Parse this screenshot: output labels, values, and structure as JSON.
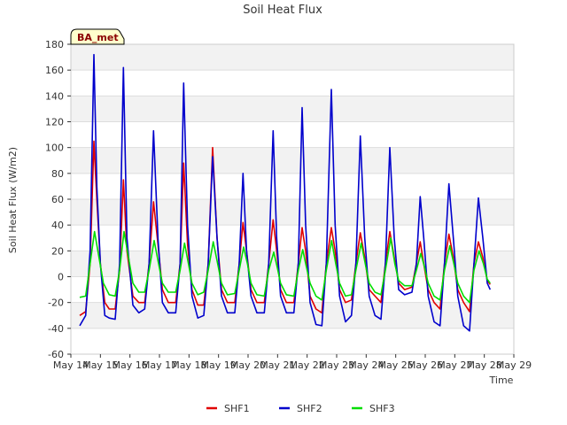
{
  "chart_data": {
    "type": "line",
    "title": "Soil Heat Flux",
    "xlabel": "Time",
    "ylabel": "Soil Heat Flux (W/m2)",
    "badge": "BA_met",
    "ylim": [
      -60,
      180
    ],
    "yticks": [
      -60,
      -40,
      -20,
      0,
      20,
      40,
      60,
      80,
      100,
      120,
      140,
      160,
      180
    ],
    "xlim": [
      14,
      29
    ],
    "xticks": [
      {
        "x": 14,
        "label": "May 14"
      },
      {
        "x": 15,
        "label": "May 15"
      },
      {
        "x": 16,
        "label": "May 16"
      },
      {
        "x": 17,
        "label": "May 17"
      },
      {
        "x": 18,
        "label": "May 18"
      },
      {
        "x": 19,
        "label": "May 19"
      },
      {
        "x": 20,
        "label": "May 20"
      },
      {
        "x": 21,
        "label": "May 21"
      },
      {
        "x": 22,
        "label": "May 22"
      },
      {
        "x": 23,
        "label": "May 23"
      },
      {
        "x": 24,
        "label": "May 24"
      },
      {
        "x": 25,
        "label": "May 25"
      },
      {
        "x": 26,
        "label": "May 26"
      },
      {
        "x": 27,
        "label": "May 27"
      },
      {
        "x": 28,
        "label": "May 28"
      },
      {
        "x": 29,
        "label": "May 29"
      }
    ],
    "grid": true,
    "legend_position": "bottom",
    "series": [
      {
        "name": "SHF1",
        "color": "#e00000",
        "points": [
          [
            14.3,
            -30
          ],
          [
            14.5,
            -27
          ],
          [
            14.65,
            10
          ],
          [
            14.78,
            105
          ],
          [
            14.88,
            60
          ],
          [
            15.0,
            10
          ],
          [
            15.15,
            -20
          ],
          [
            15.3,
            -25
          ],
          [
            15.5,
            -25
          ],
          [
            15.65,
            5
          ],
          [
            15.78,
            75
          ],
          [
            15.9,
            20
          ],
          [
            16.1,
            -15
          ],
          [
            16.3,
            -20
          ],
          [
            16.5,
            -20
          ],
          [
            16.65,
            10
          ],
          [
            16.8,
            58
          ],
          [
            16.95,
            25
          ],
          [
            17.1,
            -10
          ],
          [
            17.3,
            -20
          ],
          [
            17.55,
            -20
          ],
          [
            17.7,
            10
          ],
          [
            17.82,
            88
          ],
          [
            17.95,
            25
          ],
          [
            18.1,
            -10
          ],
          [
            18.3,
            -22
          ],
          [
            18.5,
            -22
          ],
          [
            18.65,
            10
          ],
          [
            18.8,
            100
          ],
          [
            18.95,
            30
          ],
          [
            19.1,
            -10
          ],
          [
            19.3,
            -20
          ],
          [
            19.55,
            -20
          ],
          [
            19.7,
            10
          ],
          [
            19.83,
            42
          ],
          [
            19.95,
            20
          ],
          [
            20.1,
            -10
          ],
          [
            20.3,
            -20
          ],
          [
            20.55,
            -20
          ],
          [
            20.7,
            10
          ],
          [
            20.85,
            44
          ],
          [
            20.97,
            20
          ],
          [
            21.1,
            -10
          ],
          [
            21.3,
            -20
          ],
          [
            21.55,
            -20
          ],
          [
            21.7,
            10
          ],
          [
            21.83,
            38
          ],
          [
            21.95,
            20
          ],
          [
            22.1,
            -15
          ],
          [
            22.3,
            -25
          ],
          [
            22.5,
            -28
          ],
          [
            22.65,
            10
          ],
          [
            22.82,
            38
          ],
          [
            22.95,
            20
          ],
          [
            23.1,
            -10
          ],
          [
            23.3,
            -20
          ],
          [
            23.5,
            -18
          ],
          [
            23.65,
            10
          ],
          [
            23.8,
            34
          ],
          [
            23.95,
            15
          ],
          [
            24.1,
            -10
          ],
          [
            24.3,
            -15
          ],
          [
            24.5,
            -20
          ],
          [
            24.65,
            10
          ],
          [
            24.8,
            35
          ],
          [
            24.95,
            15
          ],
          [
            25.1,
            -5
          ],
          [
            25.3,
            -10
          ],
          [
            25.55,
            -8
          ],
          [
            25.7,
            10
          ],
          [
            25.83,
            27
          ],
          [
            25.95,
            10
          ],
          [
            26.1,
            -10
          ],
          [
            26.3,
            -20
          ],
          [
            26.5,
            -25
          ],
          [
            26.65,
            10
          ],
          [
            26.8,
            33
          ],
          [
            26.95,
            15
          ],
          [
            27.1,
            -10
          ],
          [
            27.3,
            -20
          ],
          [
            27.5,
            -27
          ],
          [
            27.65,
            10
          ],
          [
            27.8,
            27
          ],
          [
            27.95,
            15
          ],
          [
            28.1,
            -3
          ],
          [
            28.2,
            -6
          ]
        ]
      },
      {
        "name": "SHF2",
        "color": "#0000cc",
        "points": [
          [
            14.3,
            -38
          ],
          [
            14.5,
            -30
          ],
          [
            14.65,
            20
          ],
          [
            14.78,
            172
          ],
          [
            14.88,
            70
          ],
          [
            15.0,
            10
          ],
          [
            15.15,
            -30
          ],
          [
            15.3,
            -32
          ],
          [
            15.5,
            -33
          ],
          [
            15.65,
            10
          ],
          [
            15.78,
            162
          ],
          [
            15.9,
            30
          ],
          [
            16.1,
            -22
          ],
          [
            16.3,
            -28
          ],
          [
            16.5,
            -25
          ],
          [
            16.65,
            10
          ],
          [
            16.8,
            113
          ],
          [
            16.95,
            30
          ],
          [
            17.1,
            -20
          ],
          [
            17.3,
            -28
          ],
          [
            17.55,
            -28
          ],
          [
            17.7,
            10
          ],
          [
            17.82,
            150
          ],
          [
            17.95,
            40
          ],
          [
            18.1,
            -15
          ],
          [
            18.3,
            -32
          ],
          [
            18.5,
            -30
          ],
          [
            18.65,
            10
          ],
          [
            18.8,
            93
          ],
          [
            18.95,
            30
          ],
          [
            19.1,
            -15
          ],
          [
            19.3,
            -28
          ],
          [
            19.55,
            -28
          ],
          [
            19.7,
            10
          ],
          [
            19.83,
            80
          ],
          [
            19.95,
            20
          ],
          [
            20.1,
            -15
          ],
          [
            20.3,
            -28
          ],
          [
            20.55,
            -28
          ],
          [
            20.7,
            10
          ],
          [
            20.85,
            113
          ],
          [
            20.97,
            30
          ],
          [
            21.1,
            -15
          ],
          [
            21.3,
            -28
          ],
          [
            21.55,
            -28
          ],
          [
            21.7,
            10
          ],
          [
            21.83,
            131
          ],
          [
            21.95,
            40
          ],
          [
            22.1,
            -20
          ],
          [
            22.3,
            -37
          ],
          [
            22.5,
            -38
          ],
          [
            22.65,
            10
          ],
          [
            22.82,
            145
          ],
          [
            22.95,
            40
          ],
          [
            23.1,
            -15
          ],
          [
            23.3,
            -35
          ],
          [
            23.5,
            -30
          ],
          [
            23.65,
            10
          ],
          [
            23.8,
            109
          ],
          [
            23.95,
            30
          ],
          [
            24.1,
            -15
          ],
          [
            24.3,
            -30
          ],
          [
            24.5,
            -33
          ],
          [
            24.65,
            10
          ],
          [
            24.8,
            100
          ],
          [
            24.95,
            30
          ],
          [
            25.1,
            -10
          ],
          [
            25.3,
            -14
          ],
          [
            25.55,
            -12
          ],
          [
            25.7,
            10
          ],
          [
            25.83,
            62
          ],
          [
            25.95,
            30
          ],
          [
            26.1,
            -15
          ],
          [
            26.3,
            -35
          ],
          [
            26.5,
            -38
          ],
          [
            26.65,
            10
          ],
          [
            26.8,
            72
          ],
          [
            26.95,
            30
          ],
          [
            27.1,
            -15
          ],
          [
            27.3,
            -38
          ],
          [
            27.5,
            -42
          ],
          [
            27.65,
            10
          ],
          [
            27.8,
            61
          ],
          [
            27.95,
            30
          ],
          [
            28.1,
            -5
          ],
          [
            28.2,
            -10
          ]
        ]
      },
      {
        "name": "SHF3",
        "color": "#00dd00",
        "points": [
          [
            14.3,
            -16
          ],
          [
            14.5,
            -15
          ],
          [
            14.65,
            10
          ],
          [
            14.8,
            35
          ],
          [
            14.95,
            15
          ],
          [
            15.1,
            -5
          ],
          [
            15.3,
            -14
          ],
          [
            15.5,
            -15
          ],
          [
            15.65,
            5
          ],
          [
            15.8,
            35
          ],
          [
            15.95,
            15
          ],
          [
            16.1,
            -5
          ],
          [
            16.3,
            -12
          ],
          [
            16.5,
            -12
          ],
          [
            16.65,
            5
          ],
          [
            16.82,
            28
          ],
          [
            16.97,
            10
          ],
          [
            17.1,
            -5
          ],
          [
            17.3,
            -12
          ],
          [
            17.55,
            -12
          ],
          [
            17.7,
            5
          ],
          [
            17.85,
            26
          ],
          [
            17.98,
            10
          ],
          [
            18.1,
            -5
          ],
          [
            18.3,
            -14
          ],
          [
            18.5,
            -12
          ],
          [
            18.65,
            5
          ],
          [
            18.82,
            27
          ],
          [
            18.97,
            10
          ],
          [
            19.1,
            -5
          ],
          [
            19.3,
            -14
          ],
          [
            19.55,
            -13
          ],
          [
            19.7,
            5
          ],
          [
            19.85,
            23
          ],
          [
            19.98,
            10
          ],
          [
            20.1,
            -5
          ],
          [
            20.3,
            -14
          ],
          [
            20.55,
            -15
          ],
          [
            20.7,
            5
          ],
          [
            20.87,
            19
          ],
          [
            20.98,
            8
          ],
          [
            21.1,
            -5
          ],
          [
            21.3,
            -14
          ],
          [
            21.55,
            -15
          ],
          [
            21.7,
            5
          ],
          [
            21.85,
            21
          ],
          [
            21.97,
            8
          ],
          [
            22.1,
            -5
          ],
          [
            22.3,
            -15
          ],
          [
            22.5,
            -18
          ],
          [
            22.65,
            5
          ],
          [
            22.83,
            28
          ],
          [
            22.97,
            10
          ],
          [
            23.1,
            -5
          ],
          [
            23.3,
            -15
          ],
          [
            23.5,
            -14
          ],
          [
            23.65,
            5
          ],
          [
            23.83,
            26
          ],
          [
            23.97,
            10
          ],
          [
            24.1,
            -5
          ],
          [
            24.3,
            -12
          ],
          [
            24.5,
            -14
          ],
          [
            24.65,
            5
          ],
          [
            24.83,
            30
          ],
          [
            24.97,
            10
          ],
          [
            25.1,
            -3
          ],
          [
            25.3,
            -7
          ],
          [
            25.55,
            -7
          ],
          [
            25.7,
            5
          ],
          [
            25.85,
            18
          ],
          [
            25.97,
            8
          ],
          [
            26.1,
            -5
          ],
          [
            26.3,
            -15
          ],
          [
            26.5,
            -18
          ],
          [
            26.65,
            5
          ],
          [
            26.83,
            24
          ],
          [
            26.97,
            10
          ],
          [
            27.1,
            -5
          ],
          [
            27.3,
            -15
          ],
          [
            27.5,
            -20
          ],
          [
            27.65,
            5
          ],
          [
            27.82,
            20
          ],
          [
            27.97,
            10
          ],
          [
            28.1,
            -2
          ],
          [
            28.2,
            -5
          ]
        ]
      }
    ]
  }
}
